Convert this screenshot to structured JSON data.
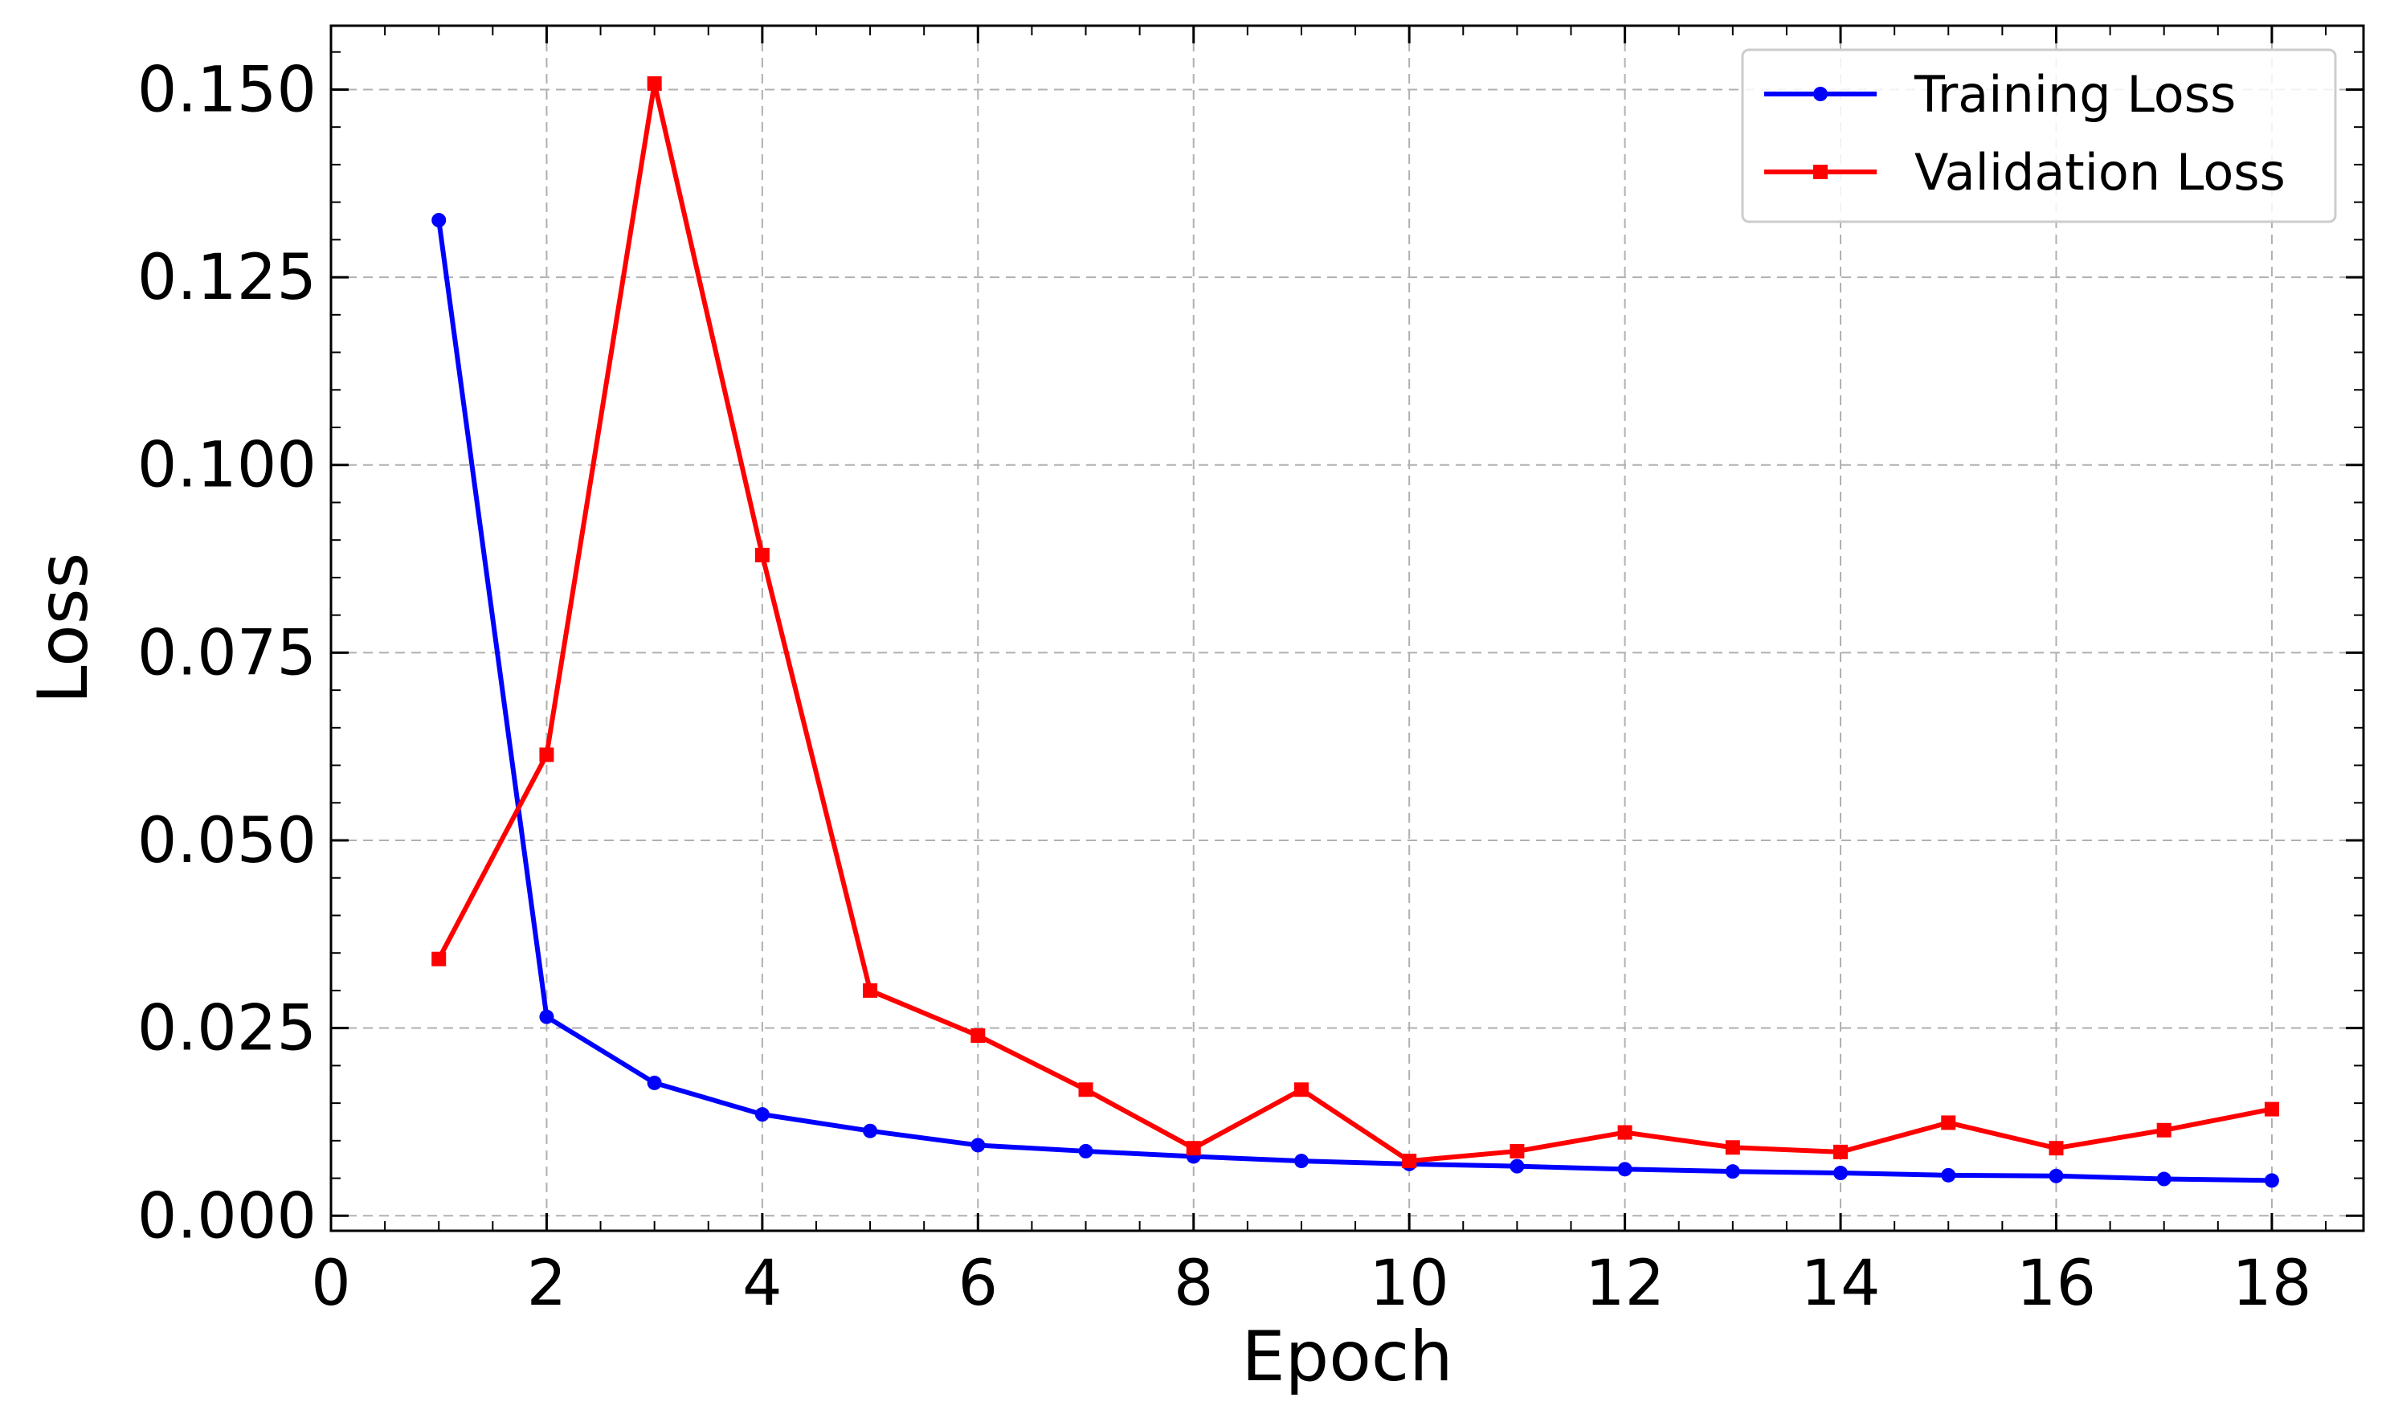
{
  "chart_data": {
    "type": "line",
    "xlabel": "Epoch",
    "ylabel": "Loss",
    "xlim": [
      0,
      18.85
    ],
    "ylim": [
      -0.002,
      0.1585
    ],
    "xticks": [
      "0",
      "2",
      "4",
      "6",
      "8",
      "10",
      "12",
      "14",
      "16",
      "18"
    ],
    "xtick_values": [
      0,
      2,
      4,
      6,
      8,
      10,
      12,
      14,
      16,
      18
    ],
    "yticks": [
      "0.000",
      "0.025",
      "0.050",
      "0.075",
      "0.100",
      "0.125",
      "0.150"
    ],
    "ytick_values": [
      0,
      0.025,
      0.05,
      0.075,
      0.1,
      0.125,
      0.15
    ],
    "grid": true,
    "legend_position": "top-right",
    "x": [
      1,
      2,
      3,
      4,
      5,
      6,
      7,
      8,
      9,
      10,
      11,
      12,
      13,
      14,
      15,
      16,
      17,
      18
    ],
    "series": [
      {
        "name": "Training Loss",
        "color": "#0000ff",
        "marker": "circle",
        "values": [
          0.1326,
          0.0265,
          0.0177,
          0.0135,
          0.0113,
          0.0094,
          0.0086,
          0.0079,
          0.0073,
          0.0069,
          0.0066,
          0.0062,
          0.0059,
          0.0057,
          0.0054,
          0.0053,
          0.0049,
          0.0047
        ]
      },
      {
        "name": "Validation Loss",
        "color": "#ff0000",
        "marker": "square",
        "values": [
          0.0342,
          0.0614,
          0.1508,
          0.088,
          0.03,
          0.024,
          0.0168,
          0.009,
          0.0168,
          0.0073,
          0.0086,
          0.0111,
          0.0091,
          0.0085,
          0.0124,
          0.009,
          0.0114,
          0.0142
        ]
      }
    ]
  }
}
